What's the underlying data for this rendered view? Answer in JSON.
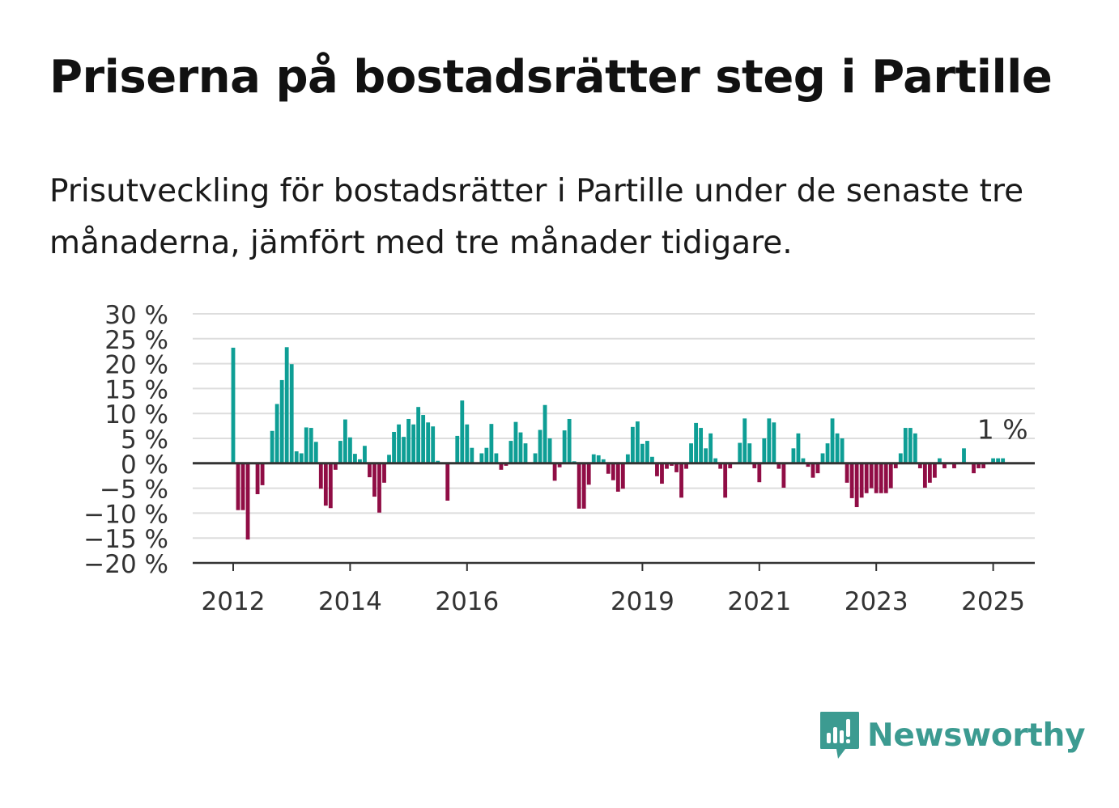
{
  "title": "Priserna på bostadsrätter steg i Partille",
  "subtitle": "Prisutveckling för bostadsrätter i Partille under de senaste tre månaderna, jämfört med tre månader tidigare.",
  "brand": "Newsworthy",
  "colors": {
    "positive": "#0e9e95",
    "negative": "#900d45",
    "gridline": "#dddddd",
    "axis": "#333333",
    "brand": "#3c9b91"
  },
  "chart_data": {
    "type": "bar",
    "title": "Priserna på bostadsrätter steg i Partille",
    "subtitle": "Prisutveckling för bostadsrätter i Partille under de senaste tre månaderna, jämfört med tre månader tidigare.",
    "xlabel": "",
    "ylabel": "",
    "ylim": [
      -20,
      30
    ],
    "y_ticks": [
      30,
      25,
      20,
      15,
      10,
      5,
      0,
      -5,
      -10,
      -15,
      -20
    ],
    "y_tick_labels": [
      "30 %",
      "25 %",
      "20 %",
      "15 %",
      "10 %",
      "5 %",
      "0 %",
      "−5 %",
      "−10 %",
      "−15 %",
      "−20 %"
    ],
    "x_ticks": [
      "2012",
      "2014",
      "2016",
      "2019",
      "2021",
      "2023",
      "2025"
    ],
    "grid": true,
    "legend": "none",
    "annotation": {
      "text": "1 %"
    },
    "x_start": "2012-01",
    "values": [
      23.2,
      -9.4,
      -9.4,
      -15.3,
      0,
      -6.2,
      -4.4,
      0,
      6.5,
      11.9,
      16.7,
      23.3,
      19.9,
      2.4,
      2,
      7.2,
      7.1,
      4.3,
      -5.1,
      -8.5,
      -9,
      -1.3,
      4.5,
      8.8,
      5.2,
      1.9,
      0.8,
      3.5,
      -2.8,
      -6.7,
      -9.9,
      -3.9,
      1.7,
      6.3,
      7.8,
      5.3,
      8.9,
      7.8,
      11.3,
      9.7,
      8.2,
      7.4,
      0.5,
      0,
      -7.5,
      0,
      5.5,
      12.6,
      7.8,
      3.1,
      0,
      2,
      3.1,
      7.9,
      2,
      -1.3,
      -0.5,
      4.5,
      8.3,
      6.2,
      4,
      0,
      2,
      6.7,
      11.7,
      5,
      -3.5,
      -0.8,
      6.6,
      8.9,
      0.4,
      -9.1,
      -9.1,
      -4.3,
      1.8,
      1.6,
      0.8,
      -2.1,
      -3.4,
      -5.7,
      -5.1,
      1.8,
      7.3,
      8.4,
      3.9,
      4.5,
      1.3,
      -2.6,
      -4.1,
      -1.1,
      -0.5,
      -1.8,
      -6.9,
      -1.1,
      4,
      8.1,
      7.1,
      3,
      6,
      1,
      -1.1,
      -6.9,
      -1,
      0,
      4.1,
      9,
      4,
      -1,
      -3.8,
      5,
      9,
      8.2,
      -1.1,
      -4.9,
      0,
      3,
      6,
      1,
      -0.7,
      -2.9,
      -2,
      2,
      4,
      9,
      6,
      5,
      -3.9,
      -7,
      -8.8,
      -6.9,
      -6,
      -5,
      -6,
      -6,
      -6,
      -5,
      -1,
      2,
      7.1,
      7.1,
      6,
      -1,
      -4.9,
      -3.9,
      -2.9,
      1,
      -1,
      0,
      -1,
      0,
      3,
      0,
      -2,
      -1,
      -1,
      0,
      1,
      1,
      1
    ]
  }
}
